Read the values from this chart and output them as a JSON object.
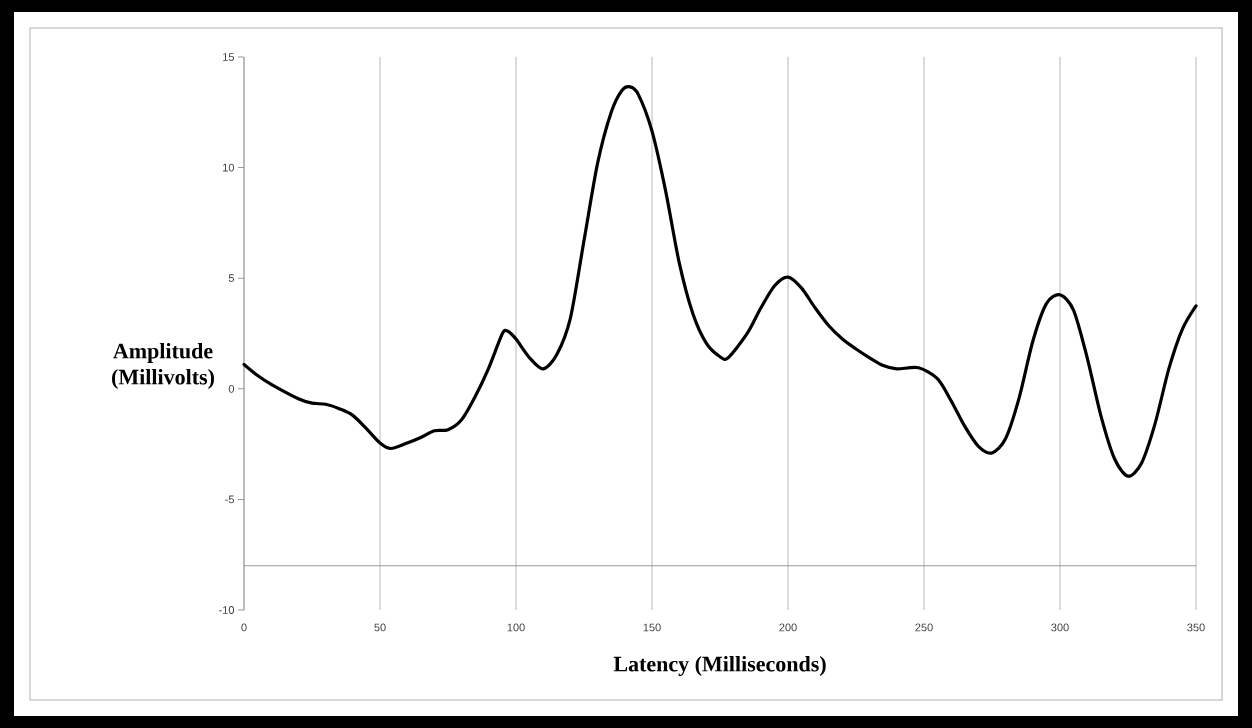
{
  "chart_data": {
    "type": "line",
    "xlabel": "Latency (Milliseconds)",
    "ylabel": "Amplitude (Millivolts)",
    "x": [
      0,
      5,
      10,
      20,
      25,
      30,
      35,
      40,
      45,
      50,
      54,
      60,
      65,
      70,
      75,
      80,
      85,
      90,
      95,
      97,
      100,
      105,
      110,
      115,
      120,
      125,
      130,
      135,
      139,
      142,
      145,
      150,
      155,
      160,
      165,
      170,
      175,
      178,
      185,
      190,
      195,
      200,
      205,
      210,
      215,
      220,
      225,
      230,
      235,
      240,
      248,
      255,
      260,
      265,
      270,
      275,
      280,
      285,
      290,
      295,
      300,
      305,
      310,
      315,
      320,
      325,
      330,
      335,
      340,
      345,
      350
    ],
    "series": [
      {
        "color": "#000000",
        "values": [
          1.1,
          0.6,
          0.2,
          -0.45,
          -0.65,
          -0.7,
          -0.9,
          -1.2,
          -1.8,
          -2.45,
          -2.7,
          -2.45,
          -2.2,
          -1.9,
          -1.85,
          -1.4,
          -0.35,
          0.95,
          2.5,
          2.6,
          2.25,
          1.4,
          0.9,
          1.55,
          3.2,
          6.7,
          10.2,
          12.5,
          13.5,
          13.65,
          13.3,
          11.65,
          8.95,
          5.7,
          3.4,
          2.05,
          1.45,
          1.4,
          2.5,
          3.65,
          4.65,
          5.05,
          4.55,
          3.65,
          2.85,
          2.25,
          1.8,
          1.4,
          1.05,
          0.9,
          0.95,
          0.45,
          -0.55,
          -1.7,
          -2.6,
          -2.9,
          -2.25,
          -0.4,
          2.15,
          3.85,
          4.25,
          3.55,
          1.4,
          -1.2,
          -3.15,
          -3.95,
          -3.35,
          -1.55,
          0.9,
          2.7,
          3.75
        ]
      }
    ],
    "xlim": [
      0,
      350
    ],
    "ylim": [
      -10,
      15
    ],
    "xticks": [
      0,
      50,
      100,
      150,
      200,
      250,
      300,
      350
    ],
    "yticks": [
      -10,
      -5,
      0,
      5,
      10,
      15
    ],
    "grid": "x",
    "ref_lines": [
      {
        "axis": "y",
        "value": -8
      }
    ]
  }
}
